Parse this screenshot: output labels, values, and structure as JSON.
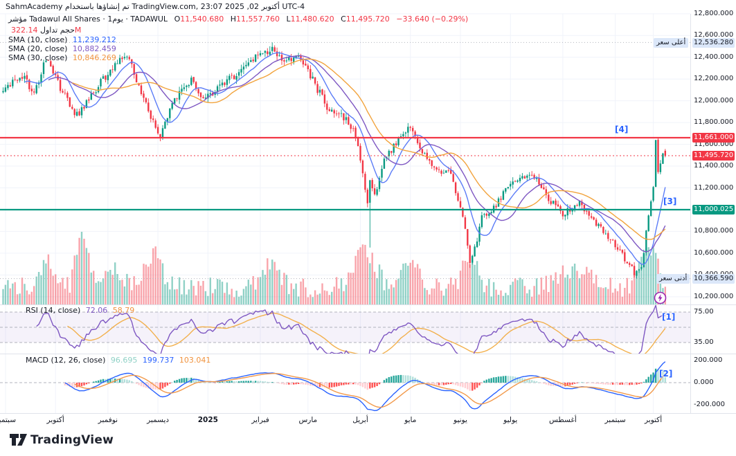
{
  "header": {
    "attribution": "SahmAcademy تم إنشاؤها باستخدام TradingView.com, 23:07 أكتوبر 02, 2025 UTC-4"
  },
  "legend": {
    "title": "مؤشر Tadawul All Shares · 1يوم · TADAWUL",
    "o_label": "O",
    "o": "11,540.680",
    "h_label": "H",
    "h": "11,557.760",
    "l_label": "L",
    "l": "11,480.620",
    "c_label": "C",
    "c": "11,495.720",
    "change": "−33.640 (−0.29%)",
    "volume_label": "حجم تداول",
    "volume_value": "322.14M",
    "sma10_label": "SMA (10, close)",
    "sma10_value": "11,239.212",
    "sma20_label": "SMA (20, close)",
    "sma20_value": "10,882.459",
    "sma30_label": "SMA (30, close)",
    "sma30_value": "10,846.269"
  },
  "rsi_legend": {
    "title": "RSI (14, close)",
    "value": "72.06",
    "ma_value": "58.79"
  },
  "macd_legend": {
    "title": "MACD (12, 26, close)",
    "hist": "96.695",
    "macd": "199.737",
    "signal": "103.041"
  },
  "annotations": {
    "a1": "[1]",
    "a2": "[2]",
    "a3": "[3]",
    "a4": "[4]"
  },
  "badges": {
    "high_label": "أعلى سعر",
    "high_value": "12,536.280",
    "low_label": "أدنى سعر",
    "low_value": "10,366.590",
    "resistance_value": "11,661.000",
    "current_value": "11,495.720",
    "support_value": "11,000.025"
  },
  "footer": {
    "brand": "TradingView"
  },
  "colors": {
    "up": "#089981",
    "down": "#f23645",
    "vol_up": "rgba(8,153,129,0.45)",
    "vol_down": "rgba(242,54,69,0.45)",
    "sma10": "#5b7cf7",
    "sma20": "#7e57c2",
    "sma30": "#f2a33c",
    "rsi": "#7e57c2",
    "rsi_ma": "#f2b04d",
    "rsi_band": "rgba(126,87,194,0.08)",
    "macd": "#2962ff",
    "signal": "#f2994a",
    "hist_up_grow": "#26a69a",
    "hist_up_fall": "#b2dfdb",
    "hist_dn_fall": "#ff5252",
    "hist_dn_grow": "#ffcdd2",
    "grid": "#f0f3fa",
    "separator": "#e0e3eb",
    "dash": "#b0b3bc",
    "level_res": "#f23645",
    "level_sup": "#089981",
    "accent": "#2962ff",
    "flash_icon": "#9c27b0"
  },
  "chart_data": {
    "type": "candlestick",
    "title": "Tadawul All Shares, 1D, TADAWUL",
    "bars": 279,
    "seed": 20251002,
    "price_ticks": [
      12800,
      12600,
      12400,
      12200,
      12000,
      11800,
      11600,
      11400,
      11200,
      11000,
      10800,
      10600,
      10400,
      10200
    ],
    "rsi_ticks": [
      75,
      35
    ],
    "rsi_band": [
      75,
      35
    ],
    "rsi_mid": 55,
    "macd_ticks": [
      200,
      0,
      -200
    ],
    "levels": {
      "resistance": 11661.0,
      "support": 11000.025,
      "current": 11495.72,
      "high": 12536.28,
      "low": 10366.59
    },
    "last_bar": {
      "o": 11540.68,
      "h": 11557.76,
      "l": 11480.62,
      "c": 11495.72
    },
    "anchors": [
      [
        0,
        12150
      ],
      [
        8,
        12270
      ],
      [
        13,
        12080
      ],
      [
        18,
        12420
      ],
      [
        24,
        12150
      ],
      [
        31,
        11890
      ],
      [
        37,
        12080
      ],
      [
        43,
        12260
      ],
      [
        52,
        12470
      ],
      [
        57,
        12150
      ],
      [
        63,
        11830
      ],
      [
        66,
        11690
      ],
      [
        71,
        12010
      ],
      [
        79,
        12210
      ],
      [
        84,
        12050
      ],
      [
        89,
        12120
      ],
      [
        97,
        12260
      ],
      [
        105,
        12420
      ],
      [
        112,
        12510
      ],
      [
        118,
        12420
      ],
      [
        125,
        12440
      ],
      [
        131,
        12180
      ],
      [
        137,
        11930
      ],
      [
        144,
        11870
      ],
      [
        148,
        11700
      ],
      [
        151,
        11380
      ],
      [
        153,
        11060
      ],
      [
        154,
        11290
      ],
      [
        156,
        11150
      ],
      [
        160,
        11480
      ],
      [
        164,
        11600
      ],
      [
        168,
        11700
      ],
      [
        171,
        11790
      ],
      [
        175,
        11600
      ],
      [
        179,
        11470
      ],
      [
        184,
        11380
      ],
      [
        188,
        11340
      ],
      [
        191,
        11100
      ],
      [
        194,
        10820
      ],
      [
        196,
        10520
      ],
      [
        199,
        10700
      ],
      [
        201,
        10960
      ],
      [
        205,
        11000
      ],
      [
        210,
        11160
      ],
      [
        216,
        11310
      ],
      [
        222,
        11360
      ],
      [
        229,
        11120
      ],
      [
        235,
        10970
      ],
      [
        242,
        11070
      ],
      [
        248,
        10920
      ],
      [
        254,
        10760
      ],
      [
        261,
        10560
      ],
      [
        265,
        10420
      ],
      [
        268,
        10480
      ],
      [
        271,
        10960
      ],
      [
        273,
        11200
      ],
      [
        274,
        11640
      ],
      [
        275,
        11360
      ],
      [
        276,
        11470
      ],
      [
        277,
        11540
      ],
      [
        278,
        11495.72
      ]
    ],
    "specials": [
      {
        "i": 112,
        "high": 12536.28
      },
      {
        "i": 154,
        "low": 10660
      },
      {
        "i": 196,
        "low": 10470
      },
      {
        "i": 265,
        "low": 10380
      },
      {
        "i": 274,
        "high": 11661
      }
    ],
    "volume_bumps": [
      {
        "i": 18,
        "a": 0.35,
        "w": 4
      },
      {
        "i": 33,
        "a": 0.85,
        "w": 3
      },
      {
        "i": 45,
        "a": 0.3,
        "w": 6
      },
      {
        "i": 63,
        "a": 0.45,
        "w": 5
      },
      {
        "i": 112,
        "a": 0.35,
        "w": 5
      },
      {
        "i": 152,
        "a": 0.5,
        "w": 6
      },
      {
        "i": 171,
        "a": 0.3,
        "w": 5
      },
      {
        "i": 196,
        "a": 0.45,
        "w": 4
      },
      {
        "i": 240,
        "a": 0.25,
        "w": 8
      },
      {
        "i": 271,
        "a": 0.5,
        "w": 5
      }
    ],
    "months": [
      {
        "label": "سبتمبر",
        "bar": 1
      },
      {
        "label": "أكتوبر",
        "bar": 22
      },
      {
        "label": "نوفمبر",
        "bar": 44
      },
      {
        "label": "ديسمبر",
        "bar": 65
      },
      {
        "label": "2025",
        "bar": 86,
        "bold": true
      },
      {
        "label": "فبراير",
        "bar": 108
      },
      {
        "label": "مارس",
        "bar": 128
      },
      {
        "label": "أبريل",
        "bar": 150
      },
      {
        "label": "مايو",
        "bar": 171
      },
      {
        "label": "يونيو",
        "bar": 192
      },
      {
        "label": "يوليو",
        "bar": 213
      },
      {
        "label": "أغسطس",
        "bar": 235
      },
      {
        "label": "سبتمبر",
        "bar": 257
      },
      {
        "label": "أكتوبر",
        "bar": 273
      }
    ]
  }
}
